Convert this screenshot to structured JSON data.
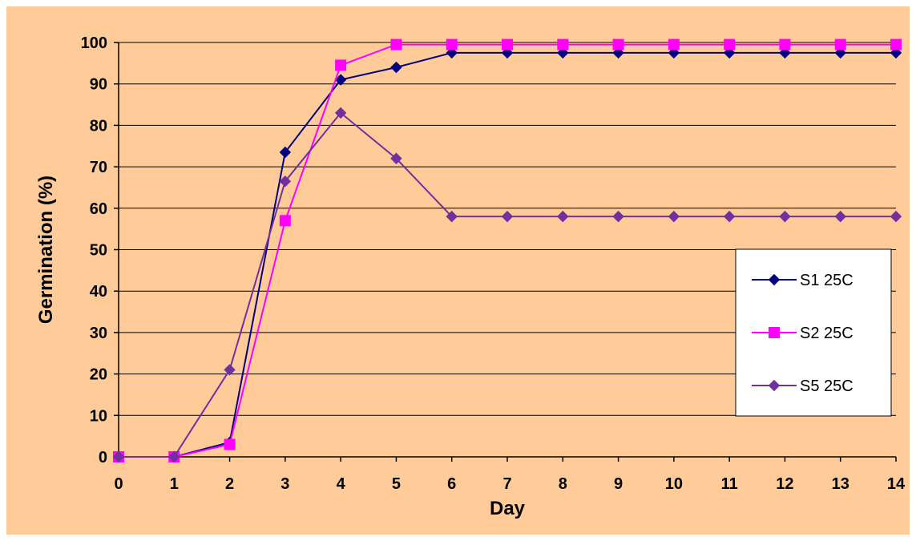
{
  "chart_data": {
    "type": "line",
    "xlabel": "Day",
    "ylabel": "Germination (%)",
    "x": [
      0,
      1,
      2,
      3,
      4,
      5,
      6,
      7,
      8,
      9,
      10,
      11,
      12,
      13,
      14
    ],
    "xlim": [
      0,
      14
    ],
    "ylim": [
      0,
      100
    ],
    "yticks": [
      0,
      10,
      20,
      30,
      40,
      50,
      60,
      70,
      80,
      90,
      100
    ],
    "grid": "horizontal",
    "legend_position": "right",
    "background_color": "#FFCC99",
    "series": [
      {
        "name": "S1 25C",
        "color": "#000080",
        "marker": "diamond",
        "values": [
          0,
          0,
          3.5,
          73.5,
          91,
          94,
          97.5,
          97.5,
          97.5,
          97.5,
          97.5,
          97.5,
          97.5,
          97.5,
          97.5
        ]
      },
      {
        "name": "S2 25C",
        "color": "#FF00FF",
        "marker": "square",
        "values": [
          0,
          0,
          3,
          57,
          94.5,
          99.5,
          99.5,
          99.5,
          99.5,
          99.5,
          99.5,
          99.5,
          99.5,
          99.5,
          99.5
        ]
      },
      {
        "name": "S5 25C",
        "color": "#7030A0",
        "marker": "diamond",
        "values": [
          0,
          0,
          21,
          66.5,
          83,
          72,
          58,
          58,
          58,
          58,
          58,
          58,
          58,
          58,
          58
        ]
      }
    ]
  }
}
